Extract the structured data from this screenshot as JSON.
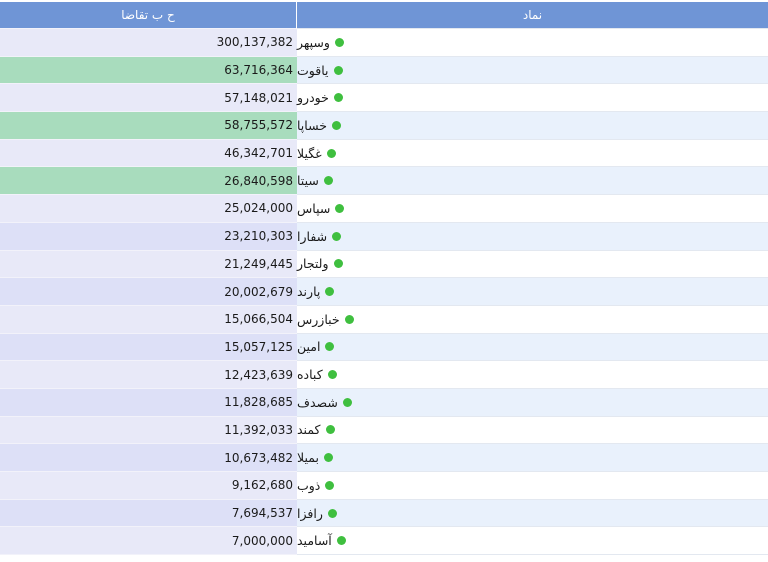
{
  "table": {
    "header_demand": "ح ب تقاضا",
    "header_symbol": "نماد",
    "status_color": "#3fbf3f",
    "highlight_color": "#a8dcbd",
    "rows": [
      {
        "symbol": "وسپهر",
        "demand": "300,137,382",
        "highlighted": false
      },
      {
        "symbol": "یاقوت",
        "demand": "63,716,364",
        "highlighted": true
      },
      {
        "symbol": "خودرو",
        "demand": "57,148,021",
        "highlighted": false
      },
      {
        "symbol": "خساپا",
        "demand": "58,755,572",
        "highlighted": true
      },
      {
        "symbol": "غگیلا",
        "demand": "46,342,701",
        "highlighted": false
      },
      {
        "symbol": "سیتا",
        "demand": "26,840,598",
        "highlighted": true
      },
      {
        "symbol": "سپاس",
        "demand": "25,024,000",
        "highlighted": false
      },
      {
        "symbol": "شفارا",
        "demand": "23,210,303",
        "highlighted": false
      },
      {
        "symbol": "ولتجار",
        "demand": "21,249,445",
        "highlighted": false
      },
      {
        "symbol": "پارند",
        "demand": "20,002,679",
        "highlighted": false
      },
      {
        "symbol": "خبازرس",
        "demand": "15,066,504",
        "highlighted": false
      },
      {
        "symbol": "امین",
        "demand": "15,057,125",
        "highlighted": false
      },
      {
        "symbol": "کباده",
        "demand": "12,423,639",
        "highlighted": false
      },
      {
        "symbol": "شصدف",
        "demand": "11,828,685",
        "highlighted": false
      },
      {
        "symbol": "کمند",
        "demand": "11,392,033",
        "highlighted": false
      },
      {
        "symbol": "بمیلا",
        "demand": "10,673,482",
        "highlighted": false
      },
      {
        "symbol": "ذوب",
        "demand": "9,162,680",
        "highlighted": false
      },
      {
        "symbol": "رافزا",
        "demand": "7,694,537",
        "highlighted": false
      },
      {
        "symbol": "آسامید",
        "demand": "7,000,000",
        "highlighted": false
      }
    ]
  }
}
